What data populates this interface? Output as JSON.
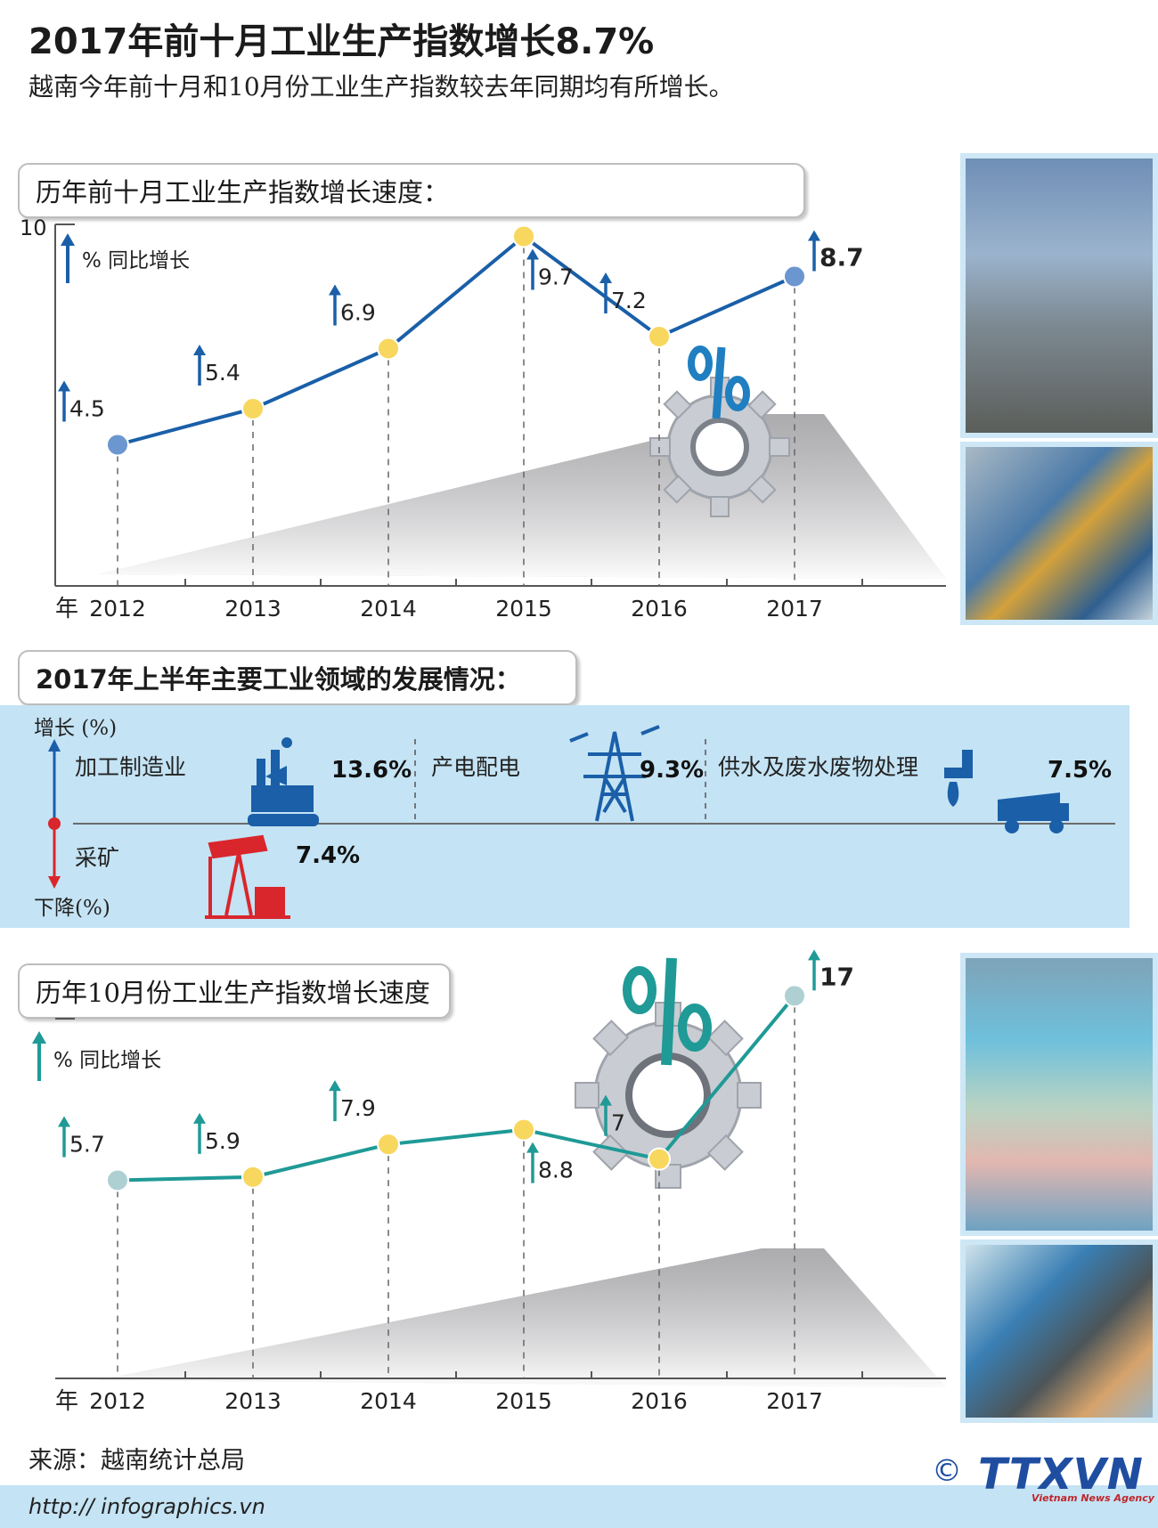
{
  "header": {
    "title": "2017年前十月工业生产指数增长8.7%",
    "subtitle": "越南今年前十月和10月份工业生产指数较去年同期均有所增长。"
  },
  "section1": {
    "heading": "历年前十月工业生产指数增长速度："
  },
  "section2": {
    "heading": "2017年上半年主要工业领域的发展情况：",
    "up_label": "增长 (%)",
    "down_label": "下降(%)",
    "sectors_up": [
      {
        "label": "加工制造业",
        "value": "13.6%",
        "icon": "factory-icon"
      },
      {
        "label": "产电配电",
        "value": "9.3%",
        "icon": "power-tower-icon"
      },
      {
        "label": "供水及废水废物处理",
        "value": "7.5%",
        "icon": "water-truck-icon"
      }
    ],
    "sectors_down": [
      {
        "label": "采矿",
        "value": "7.4%",
        "icon": "oil-pump-icon"
      }
    ],
    "colors": {
      "up": "#1a5fa8",
      "down": "#d9262c",
      "band": "#c4e3f4"
    }
  },
  "section3": {
    "heading": "历年10月份工业生产指数增长速度"
  },
  "chart_data": [
    {
      "type": "line",
      "title": "历年前十月工业生产指数增长速度：",
      "ylabel": "% 同比增长",
      "xlabel": "年",
      "ytick_label": "10",
      "x": [
        "2012",
        "2013",
        "2014",
        "2015",
        "2016",
        "2017"
      ],
      "values": [
        4.5,
        5.4,
        6.9,
        9.7,
        7.2,
        8.7
      ],
      "value_labels": [
        "4.5",
        "5.4",
        "6.9",
        "9.7",
        "7.2",
        "8.7"
      ],
      "ylim": [
        0,
        10
      ],
      "color": "#1a5fa8"
    },
    {
      "type": "line",
      "title": "历年10月份工业生产指数增长速度",
      "ylabel": "% 同比增长",
      "xlabel": "年",
      "x": [
        "2012",
        "2013",
        "2014",
        "2015",
        "2016",
        "2017"
      ],
      "values": [
        5.7,
        5.9,
        7.9,
        8.8,
        7,
        17
      ],
      "value_labels": [
        "5.7",
        "5.9",
        "7.9",
        "8.8",
        "7",
        "17"
      ],
      "ylim": [
        0,
        18
      ],
      "color": "#1f9a96"
    }
  ],
  "footer": {
    "source": "来源：越南统计总局",
    "url": "http:// infographics.vn",
    "copyright": "©",
    "logo": "TTXVN",
    "logo_sub": "Vietnam News Agency"
  }
}
